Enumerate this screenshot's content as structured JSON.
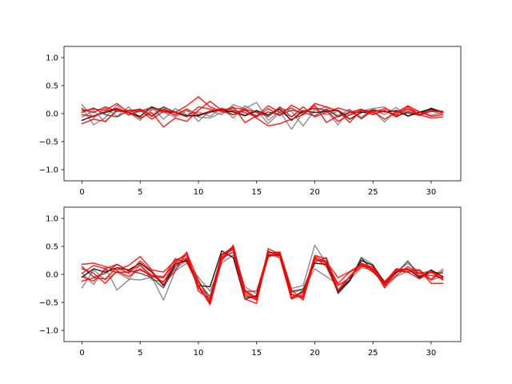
{
  "chart_data": [
    {
      "type": "line",
      "title": "",
      "xlabel": "",
      "ylabel": "",
      "xlim": [
        -1.55,
        32.55
      ],
      "ylim": [
        -1.2,
        1.2
      ],
      "xticks": [
        0,
        5,
        10,
        15,
        20,
        25,
        30
      ],
      "yticks": [
        -1.0,
        -0.5,
        0.0,
        0.5,
        1.0
      ],
      "xtick_labels": [
        "0",
        "5",
        "10",
        "15",
        "20",
        "25",
        "30"
      ],
      "ytick_labels": [
        "−1.0",
        "−0.5",
        "0.0",
        "0.5",
        "1.0"
      ],
      "grid": false,
      "x": [
        0,
        1,
        2,
        3,
        4,
        5,
        6,
        7,
        8,
        9,
        10,
        11,
        12,
        13,
        14,
        15,
        16,
        17,
        18,
        19,
        20,
        21,
        22,
        23,
        24,
        25,
        26,
        27,
        28,
        29,
        30,
        31
      ],
      "series": [
        {
          "color": "#808080",
          "values": [
            0.16,
            -0.08,
            0.1,
            -0.05,
            0.12,
            -0.09,
            0.06,
            0.11,
            -0.04,
            0.08,
            -0.14,
            0.05,
            -0.02,
            0.16,
            0.09,
            0.2,
            -0.12,
            0.04,
            -0.28,
            0.02,
            0.1,
            0.05,
            -0.2,
            0.06,
            -0.07,
            0.09,
            -0.02,
            0.11,
            -0.05,
            0.03,
            0.09,
            0.04
          ]
        },
        {
          "color": "#808080",
          "values": [
            0.1,
            -0.2,
            -0.07,
            0.15,
            -0.03,
            0.04,
            0.12,
            -0.1,
            0.09,
            -0.02,
            0.03,
            -0.05,
            0.1,
            -0.08,
            0.14,
            0.02,
            -0.06,
            0.1,
            0.04,
            -0.22,
            0.06,
            0.12,
            -0.04,
            0.08,
            -0.1,
            0.05,
            -0.15,
            0.06,
            0.02,
            -0.04,
            0.05,
            -0.02
          ]
        },
        {
          "color": "#808080",
          "values": [
            -0.06,
            0.05,
            -0.15,
            0.08,
            0.02,
            -0.12,
            0.09,
            0.02,
            -0.06,
            0.05,
            -0.06,
            -0.08,
            0.02,
            0.05,
            -0.02,
            0.06,
            -0.18,
            0.02,
            -0.05,
            0.05,
            0.08,
            -0.02,
            0.04,
            -0.03,
            0.05,
            0.09,
            0.12,
            -0.06,
            0.08,
            0.04,
            -0.03,
            0.02
          ]
        },
        {
          "color": "#404040",
          "values": [
            0.02,
            0.1,
            -0.02,
            -0.06,
            0.05,
            0.08,
            -0.04,
            0.12,
            0.03,
            -0.04,
            -0.03,
            0.02,
            0.08,
            -0.02,
            0.06,
            -0.04,
            0.03,
            -0.02,
            0.06,
            0.02,
            -0.04,
            0.08,
            -0.06,
            0.02,
            0.03,
            -0.01,
            0.05,
            -0.03,
            0.01,
            -0.02,
            0.1,
            0.02
          ]
        },
        {
          "color": "#000000",
          "values": [
            -0.12,
            -0.04,
            0.02,
            0.08,
            0.02,
            -0.05,
            0.12,
            0.04,
            0.02,
            -0.04,
            -0.04,
            0.04,
            0.06,
            0.03,
            -0.04,
            0.05,
            -0.02,
            0.08,
            -0.12,
            0.05,
            0.02,
            0.04,
            0.06,
            -0.1,
            0.02,
            0.06,
            0.03,
            0.05,
            -0.04,
            0.02,
            0.08,
            0.02
          ]
        },
        {
          "color": "#ff0000",
          "values": [
            -0.18,
            -0.1,
            -0.14,
            0.05,
            0.02,
            0.08,
            -0.05,
            0.08,
            0.02,
            0.14,
            0.3,
            0.12,
            0.04,
            -0.02,
            0.08,
            -0.08,
            -0.22,
            -0.18,
            -0.1,
            -0.02,
            0.18,
            0.12,
            0.05,
            -0.16,
            0.06,
            0.02,
            0.09,
            0.02,
            0.14,
            0.03,
            -0.05,
            -0.02
          ]
        },
        {
          "color": "#ff0000",
          "values": [
            0.05,
            0.08,
            0.06,
            0.18,
            0.02,
            -0.08,
            0.02,
            -0.24,
            -0.08,
            -0.14,
            0.06,
            0.22,
            0.06,
            0.1,
            0.08,
            0.02,
            -0.04,
            0.12,
            -0.06,
            0.12,
            -0.06,
            0.02,
            0.1,
            0.04,
            -0.08,
            0.06,
            0.04,
            -0.02,
            0.12,
            -0.02,
            0.06,
            0.02
          ]
        },
        {
          "color": "#ff0000",
          "values": [
            0.08,
            0.02,
            0.12,
            0.04,
            0.06,
            0.04,
            0.1,
            0.06,
            0.02,
            -0.06,
            0.12,
            0.08,
            0.04,
            0.12,
            -0.16,
            -0.04,
            0.14,
            0.02,
            0.1,
            -0.02,
            0.15,
            -0.16,
            -0.04,
            0.02,
            0.08,
            -0.02,
            0.06,
            -0.06,
            0.04,
            -0.02,
            -0.08,
            -0.06
          ]
        },
        {
          "color": "#ff0000",
          "values": [
            -0.02,
            -0.05,
            0.04,
            0.1,
            -0.02,
            0.06,
            -0.1,
            0.04,
            -0.02,
            0.08,
            -0.02,
            0.04,
            0.09,
            0.06,
            0.02,
            -0.06,
            0.09,
            -0.04,
            0.15,
            0.04,
            0.1,
            0.06,
            -0.14,
            -0.02,
            0.06,
            0.04,
            -0.1,
            0.02,
            0.08,
            -0.02,
            0.04,
            0.04
          ]
        }
      ]
    },
    {
      "type": "line",
      "title": "",
      "xlabel": "",
      "ylabel": "",
      "xlim": [
        -1.55,
        32.55
      ],
      "ylim": [
        -1.2,
        1.2
      ],
      "xticks": [
        0,
        5,
        10,
        15,
        20,
        25,
        30
      ],
      "yticks": [
        -1.0,
        -0.5,
        0.0,
        0.5,
        1.0
      ],
      "xtick_labels": [
        "0",
        "5",
        "10",
        "15",
        "20",
        "25",
        "30"
      ],
      "ytick_labels": [
        "−1.0",
        "−0.5",
        "0.0",
        "0.5",
        "1.0"
      ],
      "grid": false,
      "x": [
        0,
        1,
        2,
        3,
        4,
        5,
        6,
        7,
        8,
        9,
        10,
        11,
        12,
        13,
        14,
        15,
        16,
        17,
        18,
        19,
        20,
        21,
        22,
        23,
        24,
        25,
        26,
        27,
        28,
        29,
        30,
        31
      ],
      "series": [
        {
          "color": "#808080",
          "values": [
            -0.24,
            0.08,
            -0.1,
            0.04,
            -0.08,
            -0.1,
            -0.05,
            -0.46,
            0.06,
            0.2,
            -0.05,
            -0.3,
            0.2,
            0.35,
            -0.3,
            -0.42,
            0.3,
            0.4,
            -0.25,
            -0.2,
            0.52,
            0.2,
            -0.28,
            -0.1,
            0.12,
            0.08,
            -0.12,
            0.04,
            0.2,
            0.04,
            -0.08,
            0.1
          ]
        },
        {
          "color": "#808080",
          "values": [
            0.02,
            -0.18,
            0.12,
            -0.28,
            -0.1,
            0.18,
            -0.1,
            -0.12,
            0.1,
            0.25,
            -0.2,
            -0.44,
            0.3,
            0.4,
            -0.22,
            -0.35,
            0.35,
            0.3,
            -0.32,
            -0.28,
            0.1,
            -0.04,
            -0.18,
            -0.12,
            0.3,
            0.18,
            -0.24,
            -0.04,
            0.06,
            0.02,
            -0.1,
            -0.04
          ]
        },
        {
          "color": "#404040",
          "values": [
            0.14,
            -0.05,
            0.02,
            0.18,
            0.06,
            0.02,
            -0.06,
            -0.24,
            0.14,
            0.28,
            -0.14,
            -0.4,
            0.35,
            0.44,
            -0.4,
            -0.4,
            0.4,
            0.36,
            -0.3,
            -0.26,
            0.22,
            0.3,
            -0.34,
            -0.12,
            0.3,
            0.05,
            -0.18,
            0.02,
            0.24,
            -0.04,
            0.04,
            0.02
          ]
        },
        {
          "color": "#000000",
          "values": [
            -0.05,
            0.1,
            0.04,
            0.12,
            0.08,
            0.2,
            0.04,
            -0.2,
            0.18,
            0.25,
            -0.2,
            -0.22,
            0.42,
            0.3,
            -0.44,
            -0.38,
            0.35,
            0.34,
            -0.42,
            -0.3,
            0.2,
            0.18,
            -0.32,
            -0.1,
            0.25,
            0.16,
            -0.14,
            0.04,
            0.1,
            -0.06,
            0.08,
            -0.04
          ]
        },
        {
          "color": "#ff0000",
          "values": [
            0.18,
            0.2,
            0.14,
            0.08,
            0.16,
            0.32,
            0.08,
            0.04,
            0.25,
            0.34,
            -0.2,
            -0.54,
            0.24,
            0.52,
            -0.36,
            -0.46,
            0.46,
            0.36,
            -0.36,
            -0.42,
            0.32,
            0.22,
            -0.06,
            0.05,
            0.18,
            0.04,
            -0.14,
            0.1,
            0.04,
            0.08,
            -0.16,
            -0.16
          ]
        },
        {
          "color": "#ff0000",
          "values": [
            0.02,
            0.16,
            0.1,
            0.18,
            0.06,
            0.16,
            -0.02,
            -0.04,
            0.2,
            0.3,
            -0.24,
            -0.5,
            0.3,
            0.48,
            -0.32,
            -0.44,
            0.4,
            0.34,
            -0.36,
            -0.4,
            0.28,
            0.2,
            -0.16,
            0.04,
            0.16,
            0.1,
            -0.2,
            -0.02,
            0.14,
            0.02,
            0.06,
            -0.08
          ]
        },
        {
          "color": "#ff0000",
          "values": [
            -0.04,
            -0.12,
            0.08,
            0.04,
            0.04,
            0.08,
            -0.02,
            -0.14,
            0.22,
            0.38,
            -0.1,
            -0.48,
            0.28,
            0.4,
            -0.44,
            -0.52,
            0.42,
            0.3,
            -0.44,
            -0.36,
            0.34,
            0.28,
            -0.28,
            -0.04,
            0.14,
            0.14,
            -0.16,
            0.08,
            0.1,
            -0.02,
            -0.02,
            -0.06
          ]
        },
        {
          "color": "#ff0000",
          "values": [
            -0.12,
            -0.06,
            -0.08,
            0.12,
            0.02,
            0.24,
            0.06,
            -0.18,
            0.06,
            0.4,
            -0.3,
            -0.44,
            0.36,
            0.46,
            -0.3,
            -0.3,
            0.38,
            0.4,
            -0.28,
            -0.46,
            0.26,
            0.24,
            -0.2,
            -0.06,
            0.2,
            0.08,
            -0.18,
            0.06,
            0.04,
            -0.08,
            0.04,
            -0.1
          ]
        },
        {
          "color": "#ff0000",
          "values": [
            0.1,
            0.02,
            -0.16,
            0.06,
            -0.04,
            0.1,
            -0.04,
            -0.06,
            0.28,
            0.22,
            -0.2,
            -0.52,
            0.34,
            0.5,
            -0.28,
            -0.42,
            0.32,
            0.38,
            -0.42,
            -0.32,
            0.3,
            0.14,
            -0.3,
            -0.04,
            0.2,
            0.12,
            -0.24,
            0.1,
            0.08,
            0.08,
            -0.1,
            0.06
          ]
        }
      ]
    }
  ]
}
